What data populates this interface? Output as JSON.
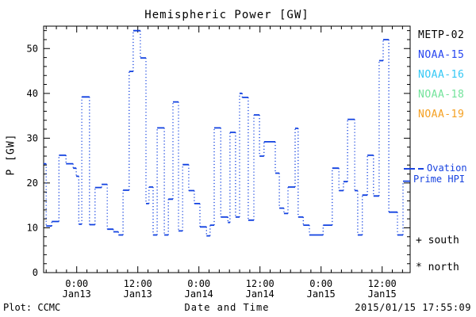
{
  "title": "Hemispheric Power [GW]",
  "ylabel": "P [GW]",
  "footer": {
    "plot_credit": "Plot: CCMC",
    "xlabel": "Date and Time",
    "timestamp": "2015/01/15 17:55:09"
  },
  "annotations": {
    "south_label": "+ south",
    "north_label": "* north"
  },
  "legend": {
    "satellites": [
      {
        "label": "METP-02",
        "color": "#000000"
      },
      {
        "label": "NOAA-15",
        "color": "#2545f0"
      },
      {
        "label": "NOAA-16",
        "color": "#35c8f5"
      },
      {
        "label": "NOAA-18",
        "color": "#72e39b"
      },
      {
        "label": "NOAA-19",
        "color": "#f5a021"
      }
    ],
    "line_sample_color": "#1843e0",
    "line_label_line1": "Ovation",
    "line_label_line2": "Prime HPI"
  },
  "colors": {
    "axis": "#000000",
    "data_line": "#1040e0",
    "background": "#ffffff"
  },
  "chart_data": {
    "type": "line",
    "subtype": "step-post, dotted vertical connectors",
    "title": "Hemispheric Power [GW]",
    "xlabel": "Date and Time",
    "ylabel": "P [GW]",
    "legend_position": "right, outside plot",
    "grid": false,
    "ylim": [
      0,
      55
    ],
    "y_major_ticks": [
      0,
      10,
      20,
      30,
      40,
      50
    ],
    "y_minor_tick_interval": 2,
    "x_hours_range": [
      0,
      72
    ],
    "x_window_note": "approx 2015-01-12 18:00 to 2015-01-15 18:00 UT",
    "x_major_ticks": [
      {
        "t": 6.5,
        "time": "0:00",
        "date": "Jan13"
      },
      {
        "t": 18.5,
        "time": "12:00",
        "date": "Jan13"
      },
      {
        "t": 30.5,
        "time": "0:00",
        "date": "Jan14"
      },
      {
        "t": 42.5,
        "time": "12:00",
        "date": "Jan14"
      },
      {
        "t": 54.5,
        "time": "0:00",
        "date": "Jan15"
      },
      {
        "t": 66.5,
        "time": "12:00",
        "date": "Jan15"
      }
    ],
    "x_minor_tick_start": 0.5,
    "x_minor_tick_interval_hours": 2,
    "series": [
      {
        "name": "Ovation Prime HPI",
        "color": "#1040e0",
        "units": "GW",
        "steps_t_hours_value_gw": [
          [
            0.0,
            24.3
          ],
          [
            0.5,
            10.4
          ],
          [
            1.6,
            11.4
          ],
          [
            3.0,
            26.2
          ],
          [
            4.4,
            24.3
          ],
          [
            5.8,
            23.3
          ],
          [
            6.4,
            21.5
          ],
          [
            6.9,
            10.8
          ],
          [
            7.5,
            39.2
          ],
          [
            9.0,
            10.7
          ],
          [
            10.1,
            19.0
          ],
          [
            11.4,
            19.7
          ],
          [
            12.5,
            9.7
          ],
          [
            13.7,
            9.1
          ],
          [
            14.7,
            8.4
          ],
          [
            15.6,
            18.4
          ],
          [
            16.8,
            44.9
          ],
          [
            17.6,
            54.0
          ],
          [
            19.0,
            47.9
          ],
          [
            20.1,
            15.4
          ],
          [
            20.7,
            19.1
          ],
          [
            21.5,
            8.4
          ],
          [
            22.3,
            32.3
          ],
          [
            23.7,
            8.4
          ],
          [
            24.5,
            16.4
          ],
          [
            25.4,
            38.1
          ],
          [
            26.5,
            9.3
          ],
          [
            27.3,
            24.1
          ],
          [
            28.5,
            18.3
          ],
          [
            29.6,
            15.4
          ],
          [
            30.7,
            10.2
          ],
          [
            32.0,
            8.2
          ],
          [
            32.7,
            10.6
          ],
          [
            33.5,
            32.3
          ],
          [
            34.8,
            12.4
          ],
          [
            36.2,
            11.2
          ],
          [
            36.6,
            31.3
          ],
          [
            37.7,
            12.4
          ],
          [
            38.5,
            40.0
          ],
          [
            39.0,
            39.1
          ],
          [
            40.2,
            11.7
          ],
          [
            41.3,
            35.2
          ],
          [
            42.4,
            26.0
          ],
          [
            43.3,
            29.2
          ],
          [
            45.5,
            22.2
          ],
          [
            46.3,
            14.4
          ],
          [
            47.2,
            13.2
          ],
          [
            48.0,
            19.1
          ],
          [
            49.4,
            32.2
          ],
          [
            50.0,
            12.4
          ],
          [
            51.0,
            10.6
          ],
          [
            52.2,
            8.4
          ],
          [
            54.9,
            10.6
          ],
          [
            56.7,
            23.3
          ],
          [
            58.0,
            18.3
          ],
          [
            58.9,
            20.3
          ],
          [
            59.7,
            34.2
          ],
          [
            61.1,
            18.3
          ],
          [
            61.7,
            8.4
          ],
          [
            62.6,
            17.3
          ],
          [
            63.6,
            26.2
          ],
          [
            64.8,
            17.1
          ],
          [
            65.9,
            47.3
          ],
          [
            66.7,
            52.0
          ],
          [
            67.8,
            13.5
          ],
          [
            69.5,
            8.4
          ],
          [
            70.6,
            20.4
          ]
        ],
        "end_t_hours": 72.0
      }
    ]
  }
}
